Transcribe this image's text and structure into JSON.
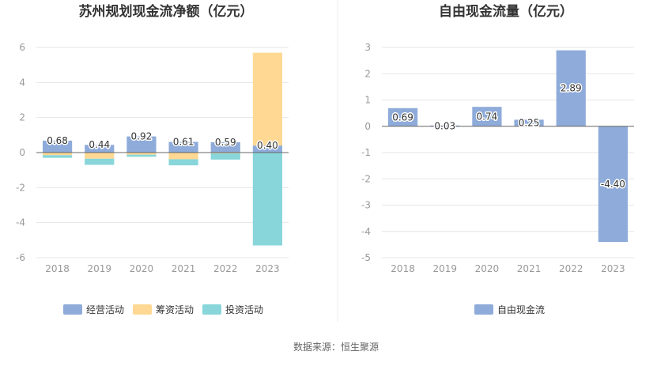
{
  "colors": {
    "operating": "#8eabda",
    "financing": "#ffd993",
    "investing": "#88d6da",
    "free_cash_flow": "#8eabda",
    "grid": "#e6e6e6",
    "axis": "#666666",
    "divider": "#eeeeee"
  },
  "source": "数据来源：恒生聚源",
  "chart_data": [
    {
      "type": "bar",
      "stacked": true,
      "title": "苏州规划现金流净额（亿元）",
      "categories": [
        "2018",
        "2019",
        "2020",
        "2021",
        "2022",
        "2023"
      ],
      "ylim": [
        -6,
        6
      ],
      "yticks": [
        6,
        4,
        2,
        0,
        -2,
        -4,
        -6
      ],
      "grid": true,
      "legend_position": "bottom",
      "series": [
        {
          "name": "经营活动",
          "values": [
            0.68,
            0.44,
            0.92,
            0.61,
            0.59,
            0.4
          ],
          "labels": [
            "0.68",
            "0.44",
            "0.92",
            "0.61",
            "0.59",
            "0.40"
          ]
        },
        {
          "name": "筹资活动",
          "values": [
            -0.15,
            -0.35,
            -0.12,
            -0.38,
            -0.05,
            5.3
          ]
        },
        {
          "name": "投资活动",
          "values": [
            -0.15,
            -0.35,
            -0.12,
            -0.35,
            -0.35,
            -5.3
          ]
        }
      ]
    },
    {
      "type": "bar",
      "title": "自由现金流量（亿元）",
      "categories": [
        "2018",
        "2019",
        "2020",
        "2021",
        "2022",
        "2023"
      ],
      "ylim": [
        -5,
        3
      ],
      "yticks": [
        3,
        2,
        1,
        0,
        -1,
        -2,
        -3,
        -4,
        -5
      ],
      "grid": true,
      "legend_position": "bottom",
      "series": [
        {
          "name": "自由现金流",
          "values": [
            0.69,
            0.03,
            0.74,
            0.25,
            2.89,
            -4.4
          ],
          "labels": [
            "0.69",
            "0.03",
            "0.74",
            "0.25",
            "2.89",
            "-4.40"
          ]
        }
      ]
    }
  ]
}
